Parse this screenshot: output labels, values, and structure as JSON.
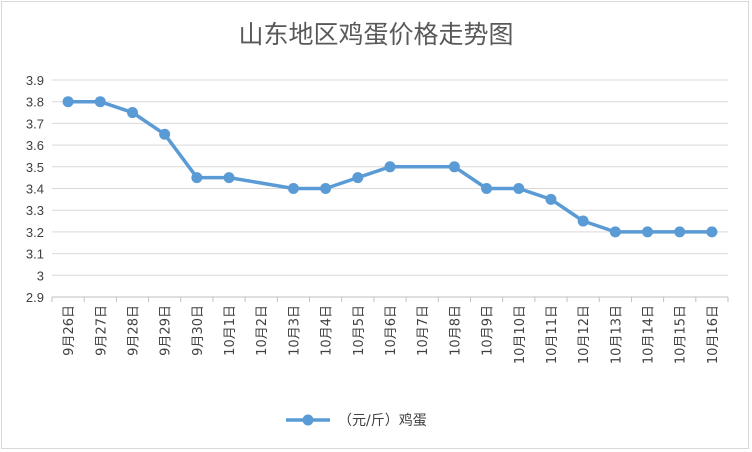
{
  "chart_data": {
    "type": "line",
    "title": "山东地区鸡蛋价格走势图",
    "xlabel": "",
    "ylabel": "",
    "categories": [
      "9月26日",
      "9月27日",
      "9月28日",
      "9月29日",
      "9月30日",
      "10月1日",
      "10月2日",
      "10月3日",
      "10月4日",
      "10月5日",
      "10月6日",
      "10月7日",
      "10月8日",
      "10月9日",
      "10月10日",
      "10月11日",
      "10月12日",
      "10月13日",
      "10月14日",
      "10月15日",
      "10月16日"
    ],
    "series": [
      {
        "name": "（元/斤）鸡蛋",
        "values": [
          3.8,
          3.8,
          3.75,
          3.65,
          3.45,
          3.45,
          null,
          3.4,
          3.4,
          3.45,
          3.5,
          null,
          3.5,
          3.4,
          3.4,
          3.35,
          3.25,
          3.2,
          3.2,
          3.2,
          3.2
        ]
      }
    ],
    "ylim": [
      2.9,
      3.9
    ],
    "yticks": [
      "2.9",
      "3",
      "3.1",
      "3.2",
      "3.3",
      "3.4",
      "3.5",
      "3.6",
      "3.7",
      "3.8",
      "3.9"
    ],
    "grid": true,
    "legend_position": "bottom",
    "colors": {
      "series": "#5b9bd5",
      "grid": "#d9d9d9",
      "axis": "#bfbfbf"
    }
  }
}
